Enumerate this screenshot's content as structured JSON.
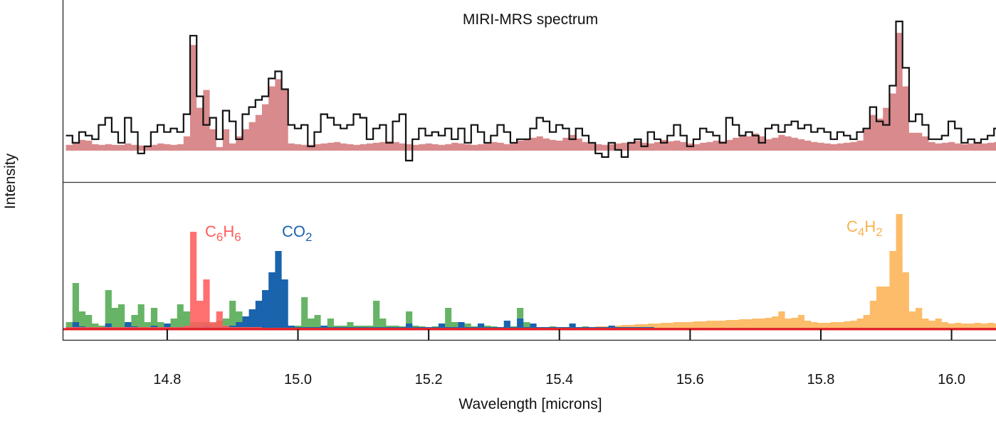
{
  "chart_data": {
    "type": "area",
    "title": "MIRI-MRS spectrum",
    "xlabel": "Wavelength [microns]",
    "ylabel": "Intensity",
    "xlim": [
      14.64,
      16.068
    ],
    "xticks": [
      14.8,
      15.0,
      15.2,
      15.4,
      15.6,
      15.8,
      16.0
    ],
    "xtick_labels": [
      "14.8",
      "15.0",
      "15.2",
      "15.4",
      "15.6",
      "15.8",
      "16.0"
    ],
    "grid": false,
    "colors": {
      "observed": "#111111",
      "model": "#d98a8c",
      "unlabeled_green": "#5fb05f",
      "CO2": "#1a63ad",
      "C6H6": "#ff5c5c",
      "C4H2": "#fbb050",
      "baseline": "#e3191f"
    },
    "x": [
      14.65,
      14.66,
      14.67,
      14.68,
      14.69,
      14.7,
      14.71,
      14.72,
      14.73,
      14.74,
      14.75,
      14.76,
      14.77,
      14.78,
      14.79,
      14.8,
      14.81,
      14.82,
      14.83,
      14.84,
      14.85,
      14.86,
      14.87,
      14.88,
      14.89,
      14.9,
      14.91,
      14.92,
      14.93,
      14.94,
      14.95,
      14.96,
      14.97,
      14.98,
      14.99,
      15.0,
      15.01,
      15.02,
      15.03,
      15.04,
      15.05,
      15.06,
      15.07,
      15.08,
      15.09,
      15.1,
      15.11,
      15.12,
      15.13,
      15.14,
      15.15,
      15.16,
      15.17,
      15.18,
      15.19,
      15.2,
      15.21,
      15.22,
      15.23,
      15.24,
      15.25,
      15.26,
      15.27,
      15.28,
      15.29,
      15.3,
      15.31,
      15.32,
      15.33,
      15.34,
      15.35,
      15.36,
      15.37,
      15.38,
      15.39,
      15.4,
      15.41,
      15.42,
      15.43,
      15.44,
      15.45,
      15.46,
      15.47,
      15.48,
      15.49,
      15.5,
      15.51,
      15.52,
      15.53,
      15.54,
      15.55,
      15.56,
      15.57,
      15.58,
      15.59,
      15.6,
      15.61,
      15.62,
      15.63,
      15.64,
      15.65,
      15.66,
      15.67,
      15.68,
      15.69,
      15.7,
      15.71,
      15.72,
      15.73,
      15.74,
      15.75,
      15.76,
      15.77,
      15.78,
      15.79,
      15.8,
      15.81,
      15.82,
      15.83,
      15.84,
      15.85,
      15.86,
      15.87,
      15.88,
      15.89,
      15.9,
      15.91,
      15.92,
      15.93,
      15.94,
      15.95,
      15.96,
      15.97,
      15.98,
      15.99,
      16.0,
      16.01,
      16.02,
      16.03,
      16.04,
      16.05,
      16.06,
      16.07
    ],
    "top_panel": {
      "ylim": [
        -44,
        211
      ],
      "observed": [
        21,
        11,
        26,
        21,
        16,
        36,
        46,
        26,
        11,
        46,
        26,
        -4,
        6,
        26,
        36,
        26,
        31,
        26,
        51,
        161,
        76,
        36,
        46,
        16,
        56,
        41,
        16,
        51,
        61,
        71,
        76,
        101,
        111,
        86,
        36,
        31,
        36,
        6,
        26,
        51,
        46,
        36,
        31,
        36,
        51,
        46,
        16,
        31,
        36,
        11,
        41,
        51,
        -14,
        16,
        31,
        21,
        26,
        21,
        31,
        16,
        31,
        11,
        36,
        26,
        11,
        21,
        36,
        26,
        11,
        16,
        16,
        31,
        46,
        41,
        26,
        36,
        31,
        16,
        31,
        21,
        11,
        -4,
        -9,
        11,
        1,
        -9,
        11,
        16,
        6,
        26,
        16,
        11,
        21,
        36,
        21,
        6,
        16,
        31,
        26,
        21,
        11,
        46,
        36,
        21,
        26,
        21,
        11,
        31,
        36,
        26,
        36,
        41,
        31,
        36,
        26,
        31,
        26,
        16,
        26,
        21,
        16,
        26,
        31,
        61,
        41,
        36,
        91,
        181,
        116,
        41,
        51,
        36,
        16,
        16,
        21,
        41,
        31,
        11,
        16,
        11,
        16,
        21,
        31
      ],
      "model": [
        8,
        12,
        15,
        14,
        9,
        8,
        9,
        8,
        8,
        10,
        8,
        7,
        7,
        8,
        10,
        9,
        8,
        9,
        20,
        148,
        60,
        85,
        30,
        5,
        30,
        10,
        20,
        30,
        40,
        50,
        65,
        90,
        100,
        85,
        10,
        9,
        8,
        8,
        9,
        10,
        11,
        12,
        10,
        9,
        8,
        9,
        10,
        11,
        12,
        13,
        12,
        10,
        9,
        8,
        9,
        10,
        9,
        8,
        9,
        11,
        10,
        9,
        8,
        9,
        10,
        12,
        11,
        9,
        10,
        14,
        16,
        18,
        20,
        17,
        15,
        14,
        18,
        22,
        17,
        12,
        10,
        9,
        8,
        9,
        10,
        11,
        12,
        14,
        11,
        10,
        12,
        15,
        13,
        14,
        12,
        10,
        9,
        11,
        12,
        14,
        13,
        15,
        18,
        22,
        20,
        24,
        20,
        16,
        18,
        22,
        20,
        18,
        16,
        14,
        12,
        11,
        10,
        9,
        10,
        11,
        12,
        14,
        30,
        50,
        45,
        60,
        80,
        165,
        90,
        25,
        25,
        20,
        12,
        10,
        11,
        12,
        10,
        9,
        10,
        11,
        10,
        11,
        12
      ]
    },
    "bottom_panel": {
      "ylim": [
        -15,
        207
      ],
      "series": [
        {
          "key": "unlabeled_green",
          "values": [
            10,
            65,
            25,
            20,
            8,
            5,
            55,
            30,
            35,
            6,
            20,
            35,
            10,
            30,
            10,
            5,
            15,
            35,
            25,
            10,
            10,
            10,
            8,
            12,
            15,
            40,
            25,
            15,
            15,
            15,
            12,
            10,
            8,
            6,
            5,
            5,
            45,
            15,
            20,
            5,
            15,
            5,
            5,
            10,
            5,
            5,
            5,
            40,
            15,
            5,
            5,
            4,
            25,
            5,
            4,
            3,
            4,
            4,
            30,
            10,
            5,
            8,
            4,
            3,
            5,
            4,
            3,
            4,
            4,
            30,
            10,
            4,
            3,
            3,
            4,
            3,
            3,
            3,
            3,
            4,
            3,
            3,
            3,
            2,
            2,
            2,
            2,
            2,
            2,
            2,
            2,
            2,
            2,
            2,
            2,
            2,
            2,
            2,
            2,
            2,
            2,
            2,
            2,
            2,
            2,
            2,
            2,
            2,
            2,
            2,
            2,
            2,
            2,
            2,
            2,
            2,
            2,
            2,
            2,
            2,
            2,
            2,
            2,
            2,
            2,
            2,
            2,
            2,
            2,
            2,
            2,
            2,
            2,
            2,
            2,
            2,
            2,
            2,
            2,
            2,
            2,
            2,
            2
          ]
        },
        {
          "key": "C4H2",
          "name": "C4H2",
          "values": [
            0,
            0,
            0,
            0,
            0,
            0,
            0,
            0,
            0,
            0,
            0,
            0,
            0,
            0,
            0,
            0,
            0,
            0,
            0,
            0,
            0,
            0,
            0,
            0,
            0,
            0,
            0,
            0,
            0,
            0,
            0,
            0,
            0,
            0,
            0,
            0,
            0,
            0,
            0,
            0,
            0,
            0,
            0,
            0,
            0,
            0,
            0,
            0,
            0,
            0,
            0,
            0,
            0,
            0,
            0,
            0,
            0,
            0,
            0,
            0,
            0,
            0,
            0,
            0,
            0,
            0,
            0,
            0,
            0,
            0,
            0,
            0,
            0,
            0,
            0,
            0,
            0,
            0,
            0,
            0,
            3,
            4,
            4,
            5,
            5,
            6,
            6,
            7,
            7,
            8,
            8,
            9,
            9,
            10,
            10,
            10,
            11,
            11,
            12,
            12,
            12,
            13,
            13,
            14,
            14,
            15,
            15,
            16,
            18,
            25,
            15,
            16,
            20,
            12,
            10,
            9,
            9,
            10,
            10,
            11,
            12,
            15,
            20,
            40,
            60,
            60,
            110,
            162,
            80,
            25,
            30,
            15,
            12,
            15,
            10,
            8,
            9,
            8,
            8,
            9,
            8,
            9,
            8
          ]
        },
        {
          "key": "CO2",
          "name": "CO2",
          "values": [
            3,
            10,
            4,
            3,
            3,
            3,
            8,
            3,
            3,
            10,
            4,
            3,
            3,
            5,
            3,
            8,
            3,
            3,
            3,
            3,
            3,
            5,
            3,
            3,
            4,
            5,
            10,
            18,
            28,
            40,
            55,
            80,
            110,
            70,
            5,
            3,
            3,
            3,
            3,
            5,
            3,
            3,
            3,
            3,
            3,
            3,
            3,
            3,
            3,
            3,
            3,
            3,
            8,
            3,
            3,
            3,
            3,
            8,
            3,
            3,
            10,
            3,
            3,
            8,
            3,
            3,
            3,
            12,
            3,
            15,
            3,
            8,
            3,
            3,
            3,
            3,
            3,
            8,
            3,
            3,
            3,
            3,
            3,
            5,
            3,
            3,
            3,
            3,
            3,
            3,
            2,
            2,
            2,
            2,
            2,
            2,
            2,
            2,
            2,
            2,
            2,
            2,
            2,
            2,
            2,
            2,
            2,
            2,
            2,
            2,
            2,
            2,
            2,
            2,
            2,
            2,
            2,
            2,
            2,
            2,
            2,
            2,
            2,
            2,
            2,
            2,
            2,
            2,
            2,
            2,
            2,
            2,
            2,
            2,
            2,
            2,
            2,
            2,
            2,
            2,
            2,
            2,
            2
          ]
        },
        {
          "key": "C6H6",
          "name": "C6H6",
          "values": [
            3,
            3,
            3,
            3,
            3,
            3,
            3,
            3,
            3,
            3,
            3,
            3,
            3,
            3,
            3,
            3,
            3,
            3,
            5,
            137,
            40,
            70,
            10,
            25,
            5,
            3,
            3,
            3,
            3,
            3,
            2,
            2,
            2,
            2,
            2,
            2,
            2,
            2,
            2,
            2,
            2,
            2,
            2,
            2,
            2,
            2,
            2,
            2,
            2,
            2,
            2,
            2,
            2,
            2,
            2,
            2,
            2,
            2,
            2,
            2,
            2,
            2,
            2,
            2,
            2,
            2,
            2,
            2,
            2,
            2,
            2,
            2,
            2,
            2,
            2,
            2,
            2,
            2,
            2,
            2,
            2,
            2,
            2,
            2,
            2,
            2,
            2,
            2,
            2,
            2,
            2,
            2,
            2,
            2,
            2,
            2,
            2,
            2,
            2,
            2,
            2,
            2,
            2,
            2,
            2,
            2,
            2,
            2,
            2,
            2,
            2,
            2,
            2,
            2,
            2,
            2,
            2,
            2,
            2,
            2,
            2,
            2,
            2,
            2,
            2,
            2,
            2,
            2,
            2,
            2,
            2,
            2,
            2,
            2,
            2,
            2,
            2,
            2,
            2,
            2,
            2,
            2,
            2
          ]
        }
      ],
      "labels": [
        {
          "key": "C6H6",
          "text": "C6H6"
        },
        {
          "key": "CO2",
          "text": "CO2"
        },
        {
          "key": "C4H2",
          "text": "C4H2"
        }
      ]
    }
  }
}
